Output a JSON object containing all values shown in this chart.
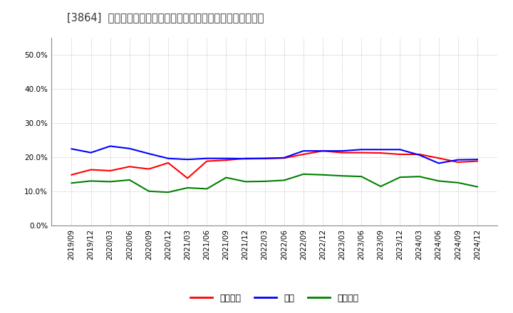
{
  "title": "[3864]  売上債権、在庫、買入債務の総資産に対する比率の推移",
  "x_labels": [
    "2019/09",
    "2019/12",
    "2020/03",
    "2020/06",
    "2020/09",
    "2020/12",
    "2021/03",
    "2021/06",
    "2021/09",
    "2021/12",
    "2022/03",
    "2022/06",
    "2022/09",
    "2022/12",
    "2023/03",
    "2023/06",
    "2023/09",
    "2023/12",
    "2024/03",
    "2024/06",
    "2024/09",
    "2024/12"
  ],
  "series": {
    "売上債権": {
      "color": "#ff0000",
      "values": [
        0.148,
        0.163,
        0.16,
        0.172,
        0.165,
        0.183,
        0.138,
        0.188,
        0.191,
        0.196,
        0.196,
        0.197,
        0.208,
        0.218,
        0.213,
        0.213,
        0.212,
        0.208,
        0.208,
        0.197,
        0.185,
        0.188
      ]
    },
    "在庫": {
      "color": "#0000ff",
      "values": [
        0.224,
        0.213,
        0.232,
        0.225,
        0.21,
        0.196,
        0.193,
        0.196,
        0.196,
        0.195,
        0.196,
        0.198,
        0.218,
        0.218,
        0.218,
        0.222,
        0.222,
        0.222,
        0.206,
        0.182,
        0.192,
        0.193
      ]
    },
    "買入債務": {
      "color": "#008000",
      "values": [
        0.124,
        0.13,
        0.128,
        0.133,
        0.1,
        0.097,
        0.11,
        0.107,
        0.14,
        0.128,
        0.129,
        0.132,
        0.15,
        0.148,
        0.145,
        0.143,
        0.114,
        0.141,
        0.143,
        0.13,
        0.125,
        0.113
      ]
    }
  },
  "ylim": [
    0.0,
    0.55
  ],
  "yticks": [
    0.0,
    0.1,
    0.2,
    0.3,
    0.4,
    0.5
  ],
  "ytick_labels": [
    "0.0%",
    "10.0%",
    "20.0%",
    "30.0%",
    "40.0%",
    "50.0%"
  ],
  "legend_labels": [
    "売上債権",
    "在庫",
    "買入債務"
  ],
  "legend_colors": [
    "#ff0000",
    "#0000ff",
    "#008000"
  ],
  "background_color": "#ffffff",
  "plot_bg_color": "#ffffff",
  "grid_color": "#b0b0b0",
  "title_fontsize": 10.5,
  "tick_fontsize": 7.5,
  "legend_fontsize": 9
}
